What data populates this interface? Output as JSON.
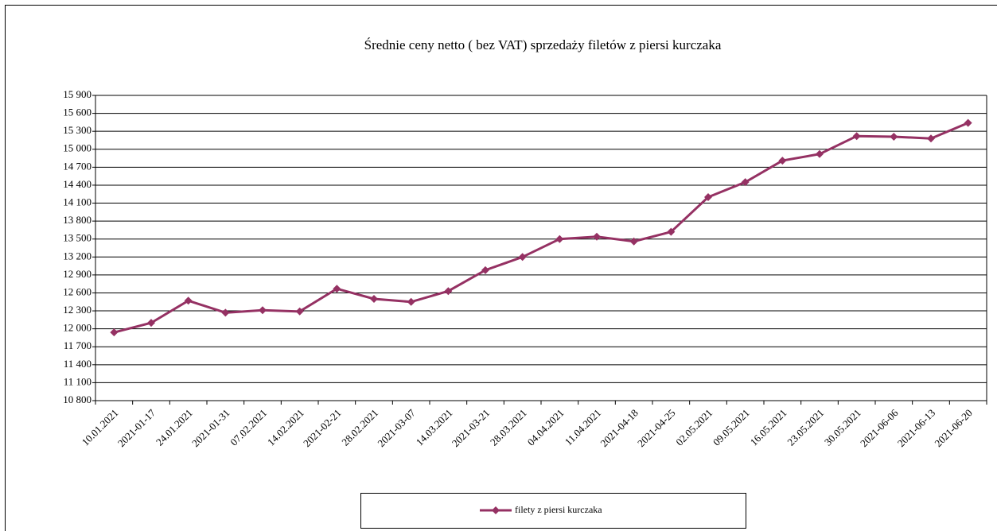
{
  "chart_data": {
    "type": "line",
    "title": "Średnie ceny netto ( bez VAT) sprzedaży filetów z piersi kurczaka",
    "categories": [
      "10.01.2021",
      "2021-01-17",
      "24.01.2021",
      "2021-01-31",
      "07.02.2021",
      "14.02.2021",
      "2021-02-21",
      "28.02.2021",
      "2021-03-07",
      "14.03.2021",
      "2021-03-21",
      "28.03.2021",
      "04.04.2021",
      "11.04.2021",
      "2021-04-18",
      "2021-04-25",
      "02.05.2021",
      "09.05.2021",
      "16.05.2021",
      "23.05.2021",
      "30.05.2021",
      "2021-06-06",
      "2021-06-13",
      "2021-06-20"
    ],
    "series": [
      {
        "name": "filety z piersi kurczaka",
        "color": "#953163",
        "values": [
          11940,
          12100,
          12470,
          12270,
          12310,
          12290,
          12670,
          12500,
          12450,
          12630,
          12980,
          13200,
          13500,
          13540,
          13460,
          13620,
          14200,
          14450,
          14810,
          14920,
          15220,
          15210,
          15180,
          15440
        ]
      }
    ],
    "ylim": [
      10800,
      15900
    ],
    "yticks": [
      {
        "value": 10800,
        "label": "10 800"
      },
      {
        "value": 11100,
        "label": "11 100"
      },
      {
        "value": 11400,
        "label": "11 400"
      },
      {
        "value": 11700,
        "label": "11 700"
      },
      {
        "value": 12000,
        "label": "12 000"
      },
      {
        "value": 12300,
        "label": "12 300"
      },
      {
        "value": 12600,
        "label": "12 600"
      },
      {
        "value": 12900,
        "label": "12 900"
      },
      {
        "value": 13200,
        "label": "13 200"
      },
      {
        "value": 13500,
        "label": "13 500"
      },
      {
        "value": 13800,
        "label": "13 800"
      },
      {
        "value": 14100,
        "label": "14 100"
      },
      {
        "value": 14400,
        "label": "14 400"
      },
      {
        "value": 14700,
        "label": "14 700"
      },
      {
        "value": 15000,
        "label": "15 000"
      },
      {
        "value": 15300,
        "label": "15 300"
      },
      {
        "value": 15600,
        "label": "15 600"
      },
      {
        "value": 15900,
        "label": "15 900"
      }
    ],
    "grid": true,
    "legend": "bottom"
  }
}
